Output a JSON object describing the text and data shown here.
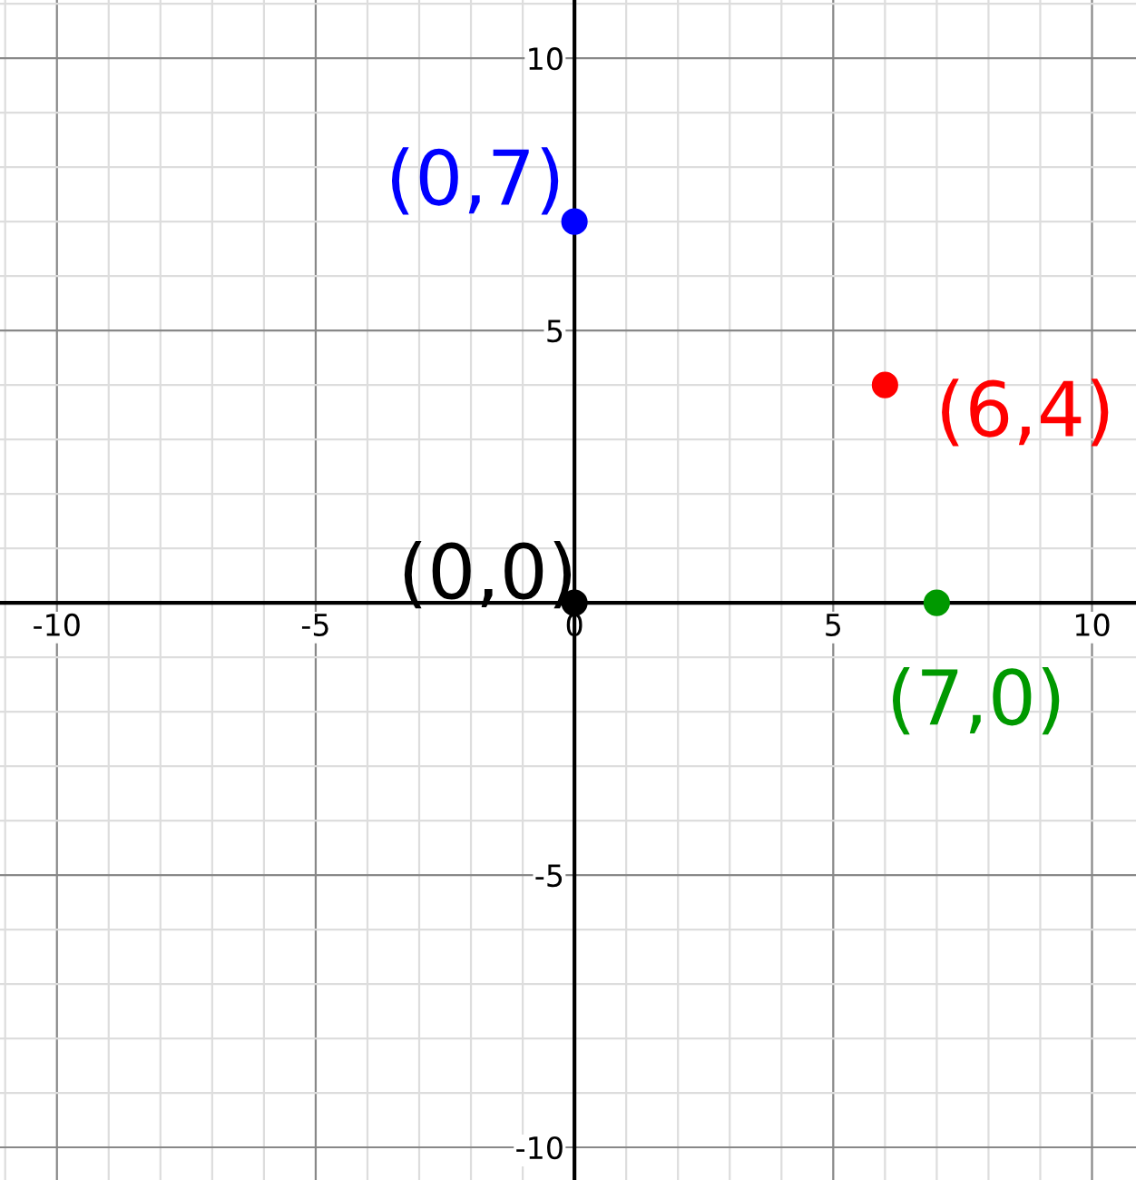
{
  "chart_data": {
    "type": "scatter",
    "xlim": [
      -11.1,
      10.85
    ],
    "ylim": [
      -10.6,
      11.07
    ],
    "xticks": [
      -10,
      -5,
      0,
      5,
      10
    ],
    "yticks": [
      -10,
      -5,
      5,
      10
    ],
    "grid": true,
    "marker": "circle",
    "series": [
      {
        "color": "#0000ff",
        "x": [
          0
        ],
        "values": [
          7
        ]
      },
      {
        "color": "#ff0000",
        "x": [
          6
        ],
        "values": [
          4
        ]
      },
      {
        "color": "#009900",
        "x": [
          7
        ],
        "values": [
          0
        ]
      },
      {
        "color": "#000000",
        "x": [
          0
        ],
        "values": [
          0
        ]
      }
    ],
    "annotations": [
      {
        "text": "(0,7)",
        "x": 0,
        "y": 7
      },
      {
        "text": "(6,4)",
        "x": 6,
        "y": 4
      },
      {
        "text": "(7,0)",
        "x": 7,
        "y": 0
      },
      {
        "text": "(0,0)",
        "x": 0,
        "y": 0
      }
    ]
  }
}
